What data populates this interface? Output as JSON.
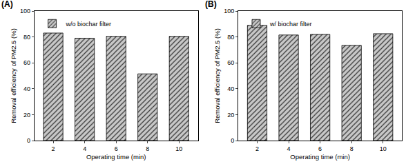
{
  "chart_data": [
    {
      "type": "bar",
      "title": "(A)",
      "x_label": "Operating time (min)",
      "y_label": "Removal efficiency of PM2.5 (%)",
      "categories": [
        "2",
        "4",
        "6",
        "8",
        "10"
      ],
      "series": [
        {
          "name": "w/o biochar filter",
          "color": "#c8c8c8",
          "values": [
            83,
            79,
            80.5,
            51.5,
            80.5
          ]
        }
      ],
      "ylim": [
        0,
        100
      ],
      "yticks": [
        0,
        20,
        40,
        60,
        80,
        100
      ],
      "legend": "upper left",
      "grid": false
    },
    {
      "type": "bar",
      "title": "(B)",
      "x_label": "Operating time (min)",
      "y_label": "Removal efficiency of PM2.5 (%)",
      "categories": [
        "2",
        "4",
        "6",
        "8",
        "10"
      ],
      "series": [
        {
          "name": "w/ biochar filter",
          "color": "#c8c8c8",
          "values": [
            89,
            81.5,
            82,
            73.5,
            82.5
          ]
        }
      ],
      "ylim": [
        0,
        100
      ],
      "yticks": [
        0,
        20,
        40,
        60,
        80,
        100
      ],
      "legend": "upper left",
      "grid": false
    }
  ]
}
